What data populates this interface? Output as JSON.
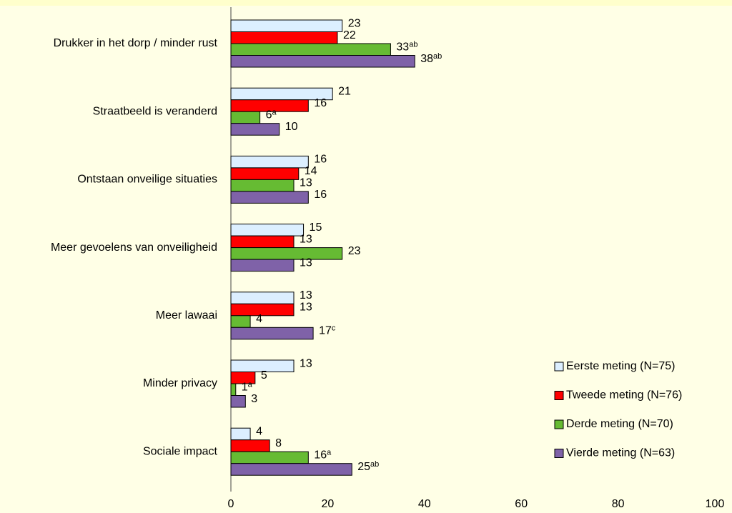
{
  "chart_data": {
    "type": "barh",
    "categories": [
      "Drukker in het dorp / minder rust",
      "Straatbeeld is veranderd",
      "Ontstaan onveilige situaties",
      "Meer gevoelens van onveiligheid",
      "Meer lawaai",
      "Minder privacy",
      "Sociale impact"
    ],
    "series": [
      {
        "name": "Eerste meting (N=75)",
        "color": "#dcefff",
        "values": [
          23,
          21,
          16,
          15,
          13,
          13,
          4
        ]
      },
      {
        "name": "Tweede meting (N=76)",
        "color": "#ff0000",
        "values": [
          22,
          16,
          14,
          13,
          13,
          5,
          8
        ]
      },
      {
        "name": "Derde meting (N=70)",
        "color": "#66bb33",
        "values": [
          33,
          6,
          13,
          23,
          4,
          1,
          16
        ],
        "superscripts": [
          "ab",
          "a",
          null,
          null,
          null,
          "a",
          "a"
        ]
      },
      {
        "name": "Vierde meting (N=63)",
        "color": "#7f62a8",
        "values": [
          38,
          10,
          16,
          13,
          17,
          3,
          25
        ],
        "superscripts": [
          "ab",
          null,
          null,
          null,
          "c",
          null,
          "ab"
        ]
      }
    ],
    "xlim": [
      0,
      100
    ],
    "xticks": [
      0,
      20,
      40,
      60,
      80,
      100
    ],
    "grid": false,
    "legend": "lower right"
  }
}
